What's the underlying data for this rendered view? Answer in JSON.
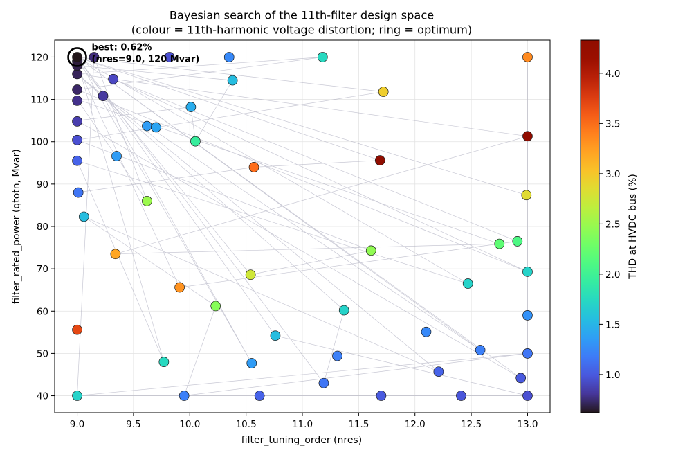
{
  "chart_data": {
    "type": "scatter",
    "title": "Bayesian search of the 11th-filter design space",
    "subtitle": "(colour = 11th-harmonic voltage distortion; ring = optimum)",
    "xlabel": "filter_tuning_order  (nres)",
    "ylabel": "filter_rated_power  (qtotn, Mvar)",
    "colorbar_label": "THD at HVDC bus (%)",
    "colormap": "turbo",
    "xlim": [
      8.8,
      13.2
    ],
    "ylim": [
      36,
      124
    ],
    "clim": [
      0.62,
      4.33
    ],
    "x_ticks": [
      "9.0",
      "9.5",
      "10.0",
      "10.5",
      "11.0",
      "11.5",
      "12.0",
      "12.5",
      "13.0"
    ],
    "y_ticks": [
      "40",
      "50",
      "60",
      "70",
      "80",
      "90",
      "100",
      "110",
      "120"
    ],
    "colorbar_ticks": [
      "1.0",
      "1.5",
      "2.0",
      "2.5",
      "3.0",
      "3.5",
      "4.0"
    ],
    "grid": true,
    "annotation": {
      "line1": "best: 0.62%",
      "line2": "(nres=9.0, 120 Mvar)",
      "x": 9.0,
      "y": 120
    },
    "path_color": "#9a9ab0",
    "points": [
      {
        "x": 9.15,
        "y": 120,
        "thd": 0.75
      },
      {
        "x": 10.35,
        "y": 120,
        "thd": 1.25
      },
      {
        "x": 11.18,
        "y": 120,
        "thd": 1.75
      },
      {
        "x": 13.0,
        "y": 120,
        "thd": 3.35
      },
      {
        "x": 9.82,
        "y": 120,
        "thd": 0.95
      },
      {
        "x": 10.38,
        "y": 114.5,
        "thd": 1.55
      },
      {
        "x": 9.32,
        "y": 114.8,
        "thd": 0.9
      },
      {
        "x": 9.0,
        "y": 112.3,
        "thd": 0.72
      },
      {
        "x": 11.72,
        "y": 111.8,
        "thd": 2.95
      },
      {
        "x": 9.23,
        "y": 110.8,
        "thd": 0.82
      },
      {
        "x": 9.0,
        "y": 109.7,
        "thd": 0.78
      },
      {
        "x": 10.01,
        "y": 108.2,
        "thd": 1.45
      },
      {
        "x": 9.0,
        "y": 104.8,
        "thd": 0.85
      },
      {
        "x": 9.62,
        "y": 103.7,
        "thd": 1.35
      },
      {
        "x": 9.7,
        "y": 103.4,
        "thd": 1.4
      },
      {
        "x": 13.0,
        "y": 101.3,
        "thd": 4.3
      },
      {
        "x": 9.0,
        "y": 100.4,
        "thd": 0.95
      },
      {
        "x": 10.05,
        "y": 100.1,
        "thd": 1.95
      },
      {
        "x": 9.35,
        "y": 96.6,
        "thd": 1.35
      },
      {
        "x": 11.69,
        "y": 95.6,
        "thd": 4.33
      },
      {
        "x": 9.0,
        "y": 95.5,
        "thd": 1.05
      },
      {
        "x": 10.57,
        "y": 94.0,
        "thd": 3.5
      },
      {
        "x": 12.99,
        "y": 87.4,
        "thd": 2.85
      },
      {
        "x": 9.01,
        "y": 88.0,
        "thd": 1.15
      },
      {
        "x": 9.62,
        "y": 86.0,
        "thd": 2.5
      },
      {
        "x": 9.06,
        "y": 82.3,
        "thd": 1.55
      },
      {
        "x": 12.91,
        "y": 76.5,
        "thd": 2.1
      },
      {
        "x": 12.75,
        "y": 75.9,
        "thd": 2.2
      },
      {
        "x": 11.61,
        "y": 74.3,
        "thd": 2.45
      },
      {
        "x": 9.34,
        "y": 73.5,
        "thd": 3.2
      },
      {
        "x": 13.0,
        "y": 69.3,
        "thd": 1.7
      },
      {
        "x": 10.54,
        "y": 68.6,
        "thd": 2.75
      },
      {
        "x": 12.47,
        "y": 66.5,
        "thd": 1.7
      },
      {
        "x": 9.91,
        "y": 65.6,
        "thd": 3.3
      },
      {
        "x": 10.23,
        "y": 61.2,
        "thd": 2.4
      },
      {
        "x": 11.37,
        "y": 60.2,
        "thd": 1.7
      },
      {
        "x": 13.0,
        "y": 59.0,
        "thd": 1.3
      },
      {
        "x": 9.0,
        "y": 55.6,
        "thd": 3.7
      },
      {
        "x": 10.76,
        "y": 54.2,
        "thd": 1.55
      },
      {
        "x": 12.1,
        "y": 55.1,
        "thd": 1.25
      },
      {
        "x": 12.58,
        "y": 50.8,
        "thd": 1.2
      },
      {
        "x": 13.0,
        "y": 50.0,
        "thd": 1.15
      },
      {
        "x": 11.31,
        "y": 49.4,
        "thd": 1.2
      },
      {
        "x": 9.77,
        "y": 48.0,
        "thd": 1.75
      },
      {
        "x": 10.55,
        "y": 47.7,
        "thd": 1.35
      },
      {
        "x": 12.21,
        "y": 45.7,
        "thd": 1.05
      },
      {
        "x": 12.94,
        "y": 44.2,
        "thd": 1.0
      },
      {
        "x": 11.19,
        "y": 43.0,
        "thd": 1.15
      },
      {
        "x": 9.0,
        "y": 40.0,
        "thd": 1.7
      },
      {
        "x": 9.95,
        "y": 40.0,
        "thd": 1.2
      },
      {
        "x": 10.62,
        "y": 40.0,
        "thd": 1.05
      },
      {
        "x": 11.7,
        "y": 40.0,
        "thd": 1.0
      },
      {
        "x": 12.41,
        "y": 40.0,
        "thd": 0.98
      },
      {
        "x": 13.0,
        "y": 40.0,
        "thd": 0.95
      },
      {
        "x": 9.0,
        "y": 116.0,
        "thd": 0.7
      },
      {
        "x": 9.0,
        "y": 118.0,
        "thd": 0.68
      },
      {
        "x": 9.0,
        "y": 119.0,
        "thd": 0.66
      },
      {
        "x": 9.0,
        "y": 120,
        "thd": 0.62
      }
    ],
    "path": [
      [
        9.0,
        120
      ],
      [
        13.0,
        120
      ],
      [
        13.0,
        40
      ],
      [
        9.0,
        40
      ],
      [
        9.15,
        120
      ],
      [
        9.62,
        86.0
      ],
      [
        9.0,
        110
      ],
      [
        12.75,
        75.9
      ],
      [
        9.34,
        73.5
      ],
      [
        13.0,
        101.3
      ],
      [
        9.0,
        116
      ],
      [
        11.18,
        120
      ],
      [
        9.0,
        112.3
      ],
      [
        13.0,
        69.3
      ],
      [
        9.32,
        114.8
      ],
      [
        12.91,
        76.5
      ],
      [
        9.91,
        65.6
      ],
      [
        9.0,
        118
      ],
      [
        10.38,
        114.5
      ],
      [
        10.05,
        100.1
      ],
      [
        10.01,
        108.2
      ],
      [
        9.0,
        105
      ],
      [
        12.94,
        44.2
      ],
      [
        9.0,
        120
      ],
      [
        11.72,
        111.8
      ],
      [
        9.7,
        103.4
      ],
      [
        9.0,
        100.4
      ],
      [
        11.61,
        74.3
      ],
      [
        10.54,
        68.6
      ],
      [
        9.0,
        119
      ],
      [
        9.77,
        48.0
      ],
      [
        9.0,
        95.5
      ],
      [
        12.47,
        66.5
      ],
      [
        9.0,
        120
      ],
      [
        11.69,
        95.6
      ],
      [
        10.57,
        94.0
      ],
      [
        9.0,
        88.0
      ],
      [
        9.0,
        55.6
      ],
      [
        9.0,
        40
      ],
      [
        13.0,
        50.0
      ],
      [
        9.95,
        40.0
      ],
      [
        10.23,
        61.2
      ],
      [
        9.06,
        82.3
      ],
      [
        12.21,
        45.7
      ],
      [
        9.0,
        116
      ],
      [
        11.37,
        60.2
      ],
      [
        11.19,
        43.0
      ],
      [
        9.0,
        120
      ],
      [
        12.58,
        50.8
      ],
      [
        9.23,
        110.8
      ],
      [
        10.55,
        47.7
      ],
      [
        9.0,
        120
      ],
      [
        12.99,
        87.4
      ],
      [
        9.0,
        120
      ],
      [
        10.76,
        54.2
      ],
      [
        13.0,
        40.0
      ]
    ]
  }
}
